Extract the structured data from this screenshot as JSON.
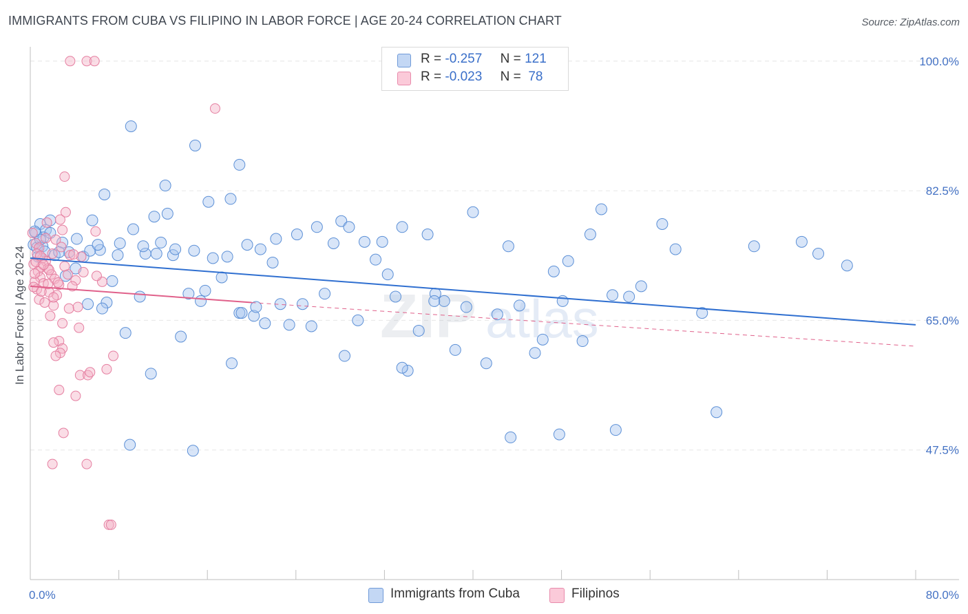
{
  "header": {
    "title": "IMMIGRANTS FROM CUBA VS FILIPINO IN LABOR FORCE | AGE 20-24 CORRELATION CHART",
    "source": "Source: ZipAtlas.com"
  },
  "legend": {
    "rows": [
      {
        "r_label": "R =",
        "r_value": "-0.257",
        "n_label": "N =",
        "n_value": "121",
        "color": "#a9c6f0"
      },
      {
        "r_label": "R =",
        "r_value": "-0.023",
        "n_label": "N =",
        "n_value": "78",
        "color": "#f5b4c8"
      }
    ]
  },
  "bottom_legend": {
    "items": [
      {
        "label": "Immigrants from Cuba",
        "color": "#a9c6f0"
      },
      {
        "label": "Filipinos",
        "color": "#f5b4c8"
      }
    ]
  },
  "watermark": {
    "zip": "ZIP",
    "atlas": "atlas"
  },
  "chart_data": {
    "type": "scatter",
    "title": "IMMIGRANTS FROM CUBA VS FILIPINO IN LABOR FORCE | AGE 20-24 CORRELATION CHART",
    "ylabel": "In Labor Force | Age 20-24",
    "xlabel": "",
    "xlim": [
      0,
      80
    ],
    "ylim": [
      30,
      101
    ],
    "x_tick_labels": [
      "0.0%",
      "80.0%"
    ],
    "y_ticks": [
      47.5,
      65.0,
      82.5,
      100.0
    ],
    "y_tick_labels": [
      "47.5%",
      "65.0%",
      "82.5%",
      "100.0%"
    ],
    "grid": true,
    "legend_position": "top-center",
    "colors": {
      "cuba_fill": "#a9c6f0",
      "cuba_stroke": "#5b8fd6",
      "cuba_line": "#2f6fd0",
      "fil_fill": "#f5b4c8",
      "fil_stroke": "#e57ea0",
      "fil_line": "#e0608a",
      "tick_text": "#4472c4",
      "grid": "#e6e6e6"
    },
    "series": [
      {
        "name": "Immigrants from Cuba",
        "color": "#a9c6f0",
        "trend": {
          "x0": 0,
          "y0": 73.4,
          "x1": 80,
          "y1": 64.4,
          "style": "solid"
        },
        "points": [
          [
            0.3,
            75.2
          ],
          [
            0.5,
            76.8
          ],
          [
            0.7,
            73.6
          ],
          [
            0.9,
            78.0
          ],
          [
            1.1,
            75.0
          ],
          [
            1.4,
            77.2
          ],
          [
            1.8,
            78.5
          ],
          [
            2.2,
            73.8
          ],
          [
            0.6,
            74.8
          ],
          [
            1.2,
            76.2
          ],
          [
            2.9,
            75.5
          ],
          [
            3.5,
            74.2
          ],
          [
            4.1,
            72.0
          ],
          [
            4.8,
            73.6
          ],
          [
            5.2,
            67.2
          ],
          [
            5.6,
            78.5
          ],
          [
            6.3,
            74.5
          ],
          [
            6.9,
            67.4
          ],
          [
            7.4,
            70.3
          ],
          [
            8.1,
            75.4
          ],
          [
            8.6,
            63.3
          ],
          [
            9.3,
            77.3
          ],
          [
            9.9,
            68.2
          ],
          [
            10.4,
            74.0
          ],
          [
            10.9,
            57.8
          ],
          [
            11.4,
            74.0
          ],
          [
            11.8,
            75.5
          ],
          [
            12.4,
            79.4
          ],
          [
            12.9,
            73.8
          ],
          [
            13.6,
            62.8
          ],
          [
            14.3,
            68.6
          ],
          [
            14.8,
            74.4
          ],
          [
            15.4,
            67.6
          ],
          [
            15.8,
            69.0
          ],
          [
            16.5,
            73.4
          ],
          [
            17.3,
            70.8
          ],
          [
            17.8,
            73.6
          ],
          [
            18.2,
            59.2
          ],
          [
            18.9,
            66.0
          ],
          [
            19.6,
            75.2
          ],
          [
            20.2,
            65.6
          ],
          [
            20.8,
            74.6
          ],
          [
            21.2,
            64.6
          ],
          [
            21.9,
            72.8
          ],
          [
            22.6,
            67.2
          ],
          [
            23.4,
            64.4
          ],
          [
            24.1,
            76.6
          ],
          [
            24.6,
            67.2
          ],
          [
            25.4,
            64.2
          ],
          [
            25.9,
            77.6
          ],
          [
            26.6,
            68.6
          ],
          [
            27.4,
            75.4
          ],
          [
            28.1,
            78.4
          ],
          [
            28.8,
            77.6
          ],
          [
            29.6,
            65.0
          ],
          [
            30.2,
            75.6
          ],
          [
            31.2,
            73.2
          ],
          [
            32.3,
            71.2
          ],
          [
            33.0,
            68.2
          ],
          [
            33.6,
            77.6
          ],
          [
            34.1,
            58.2
          ],
          [
            35.1,
            63.6
          ],
          [
            35.9,
            76.6
          ],
          [
            36.6,
            68.6
          ],
          [
            37.4,
            67.6
          ],
          [
            38.4,
            61.0
          ],
          [
            39.4,
            66.8
          ],
          [
            40.0,
            79.6
          ],
          [
            41.2,
            59.2
          ],
          [
            42.2,
            65.8
          ],
          [
            43.2,
            75.0
          ],
          [
            44.2,
            67.0
          ],
          [
            45.6,
            60.6
          ],
          [
            46.3,
            62.4
          ],
          [
            47.3,
            71.6
          ],
          [
            48.6,
            73.0
          ],
          [
            49.9,
            62.2
          ],
          [
            50.6,
            76.6
          ],
          [
            51.6,
            80.0
          ],
          [
            52.6,
            68.4
          ],
          [
            54.1,
            68.2
          ],
          [
            55.2,
            69.6
          ],
          [
            57.1,
            78.0
          ],
          [
            58.3,
            74.6
          ],
          [
            60.7,
            66.0
          ],
          [
            62.0,
            52.6
          ],
          [
            65.4,
            75.0
          ],
          [
            69.7,
            75.6
          ],
          [
            71.2,
            74.0
          ],
          [
            73.8,
            72.4
          ],
          [
            9.1,
            91.2
          ],
          [
            14.9,
            88.6
          ],
          [
            18.9,
            86.0
          ],
          [
            12.2,
            83.2
          ],
          [
            6.7,
            82.0
          ],
          [
            11.2,
            79.0
          ],
          [
            16.1,
            81.0
          ],
          [
            18.1,
            81.4
          ],
          [
            5.4,
            74.4
          ],
          [
            9.0,
            48.2
          ],
          [
            14.7,
            47.4
          ],
          [
            43.4,
            49.2
          ],
          [
            47.8,
            49.6
          ],
          [
            1.8,
            76.8
          ],
          [
            2.6,
            74.2
          ],
          [
            3.2,
            71.0
          ],
          [
            0.9,
            75.9
          ],
          [
            0.4,
            77.0
          ],
          [
            4.2,
            76.0
          ],
          [
            6.1,
            75.2
          ],
          [
            7.9,
            73.8
          ],
          [
            13.1,
            74.6
          ],
          [
            22.2,
            76.0
          ],
          [
            31.8,
            75.6
          ],
          [
            28.4,
            60.2
          ],
          [
            33.6,
            58.6
          ],
          [
            36.5,
            67.6
          ],
          [
            48.1,
            67.6
          ],
          [
            52.9,
            50.2
          ],
          [
            19.1,
            66.0
          ],
          [
            20.4,
            66.8
          ],
          [
            1.3,
            74.3
          ],
          [
            10.2,
            75.0
          ],
          [
            6.5,
            66.6
          ]
        ]
      },
      {
        "name": "Filipinos",
        "color": "#f5b4c8",
        "trend": {
          "x0": 0,
          "y0": 69.6,
          "x1": 20,
          "y1": 67.4,
          "style": "solid",
          "dashed_x1": 80,
          "dashed_y1": 61.5
        },
        "points": [
          [
            3.6,
            100.0
          ],
          [
            5.1,
            100.0
          ],
          [
            5.8,
            100.0
          ],
          [
            16.7,
            93.6
          ],
          [
            3.1,
            84.4
          ],
          [
            3.2,
            79.6
          ],
          [
            2.7,
            78.6
          ],
          [
            1.5,
            78.2
          ],
          [
            2.9,
            77.2
          ],
          [
            0.2,
            76.8
          ],
          [
            5.9,
            77.0
          ],
          [
            0.5,
            75.4
          ],
          [
            0.8,
            74.8
          ],
          [
            2.0,
            74.0
          ],
          [
            3.6,
            73.8
          ],
          [
            4.6,
            73.6
          ],
          [
            1.4,
            73.0
          ],
          [
            0.3,
            72.6
          ],
          [
            1.0,
            72.2
          ],
          [
            1.6,
            72.0
          ],
          [
            0.7,
            71.6
          ],
          [
            1.9,
            71.2
          ],
          [
            3.4,
            71.2
          ],
          [
            0.9,
            70.8
          ],
          [
            2.2,
            70.6
          ],
          [
            4.1,
            70.4
          ],
          [
            0.4,
            70.2
          ],
          [
            1.2,
            70.0
          ],
          [
            2.6,
            69.8
          ],
          [
            3.8,
            69.6
          ],
          [
            6.5,
            70.2
          ],
          [
            0.6,
            69.2
          ],
          [
            1.7,
            68.8
          ],
          [
            2.4,
            68.4
          ],
          [
            0.8,
            67.8
          ],
          [
            1.3,
            67.4
          ],
          [
            2.1,
            67.0
          ],
          [
            3.5,
            66.6
          ],
          [
            4.3,
            66.8
          ],
          [
            1.8,
            65.6
          ],
          [
            2.9,
            64.6
          ],
          [
            4.4,
            64.0
          ],
          [
            2.6,
            62.2
          ],
          [
            2.1,
            62.0
          ],
          [
            2.9,
            61.2
          ],
          [
            2.7,
            60.6
          ],
          [
            2.3,
            60.2
          ],
          [
            7.5,
            60.2
          ],
          [
            6.9,
            58.4
          ],
          [
            4.5,
            57.6
          ],
          [
            5.2,
            57.6
          ],
          [
            5.4,
            58.0
          ],
          [
            2.6,
            55.6
          ],
          [
            4.1,
            54.8
          ],
          [
            3.0,
            49.8
          ],
          [
            2.0,
            45.6
          ],
          [
            5.1,
            45.6
          ],
          [
            7.1,
            37.4
          ],
          [
            7.3,
            37.4
          ],
          [
            1.1,
            73.4
          ],
          [
            0.5,
            72.9
          ],
          [
            1.7,
            71.8
          ],
          [
            2.5,
            70.1
          ],
          [
            0.3,
            69.5
          ],
          [
            1.0,
            68.9
          ],
          [
            3.1,
            72.3
          ],
          [
            4.8,
            71.5
          ],
          [
            6.0,
            71.0
          ],
          [
            0.6,
            74.0
          ],
          [
            1.4,
            76.1
          ],
          [
            2.3,
            75.9
          ],
          [
            0.9,
            73.7
          ],
          [
            3.9,
            73.9
          ],
          [
            2.1,
            68.1
          ],
          [
            1.6,
            69.9
          ],
          [
            0.4,
            71.3
          ],
          [
            2.8,
            74.9
          ],
          [
            1.2,
            72.5
          ]
        ]
      }
    ]
  }
}
